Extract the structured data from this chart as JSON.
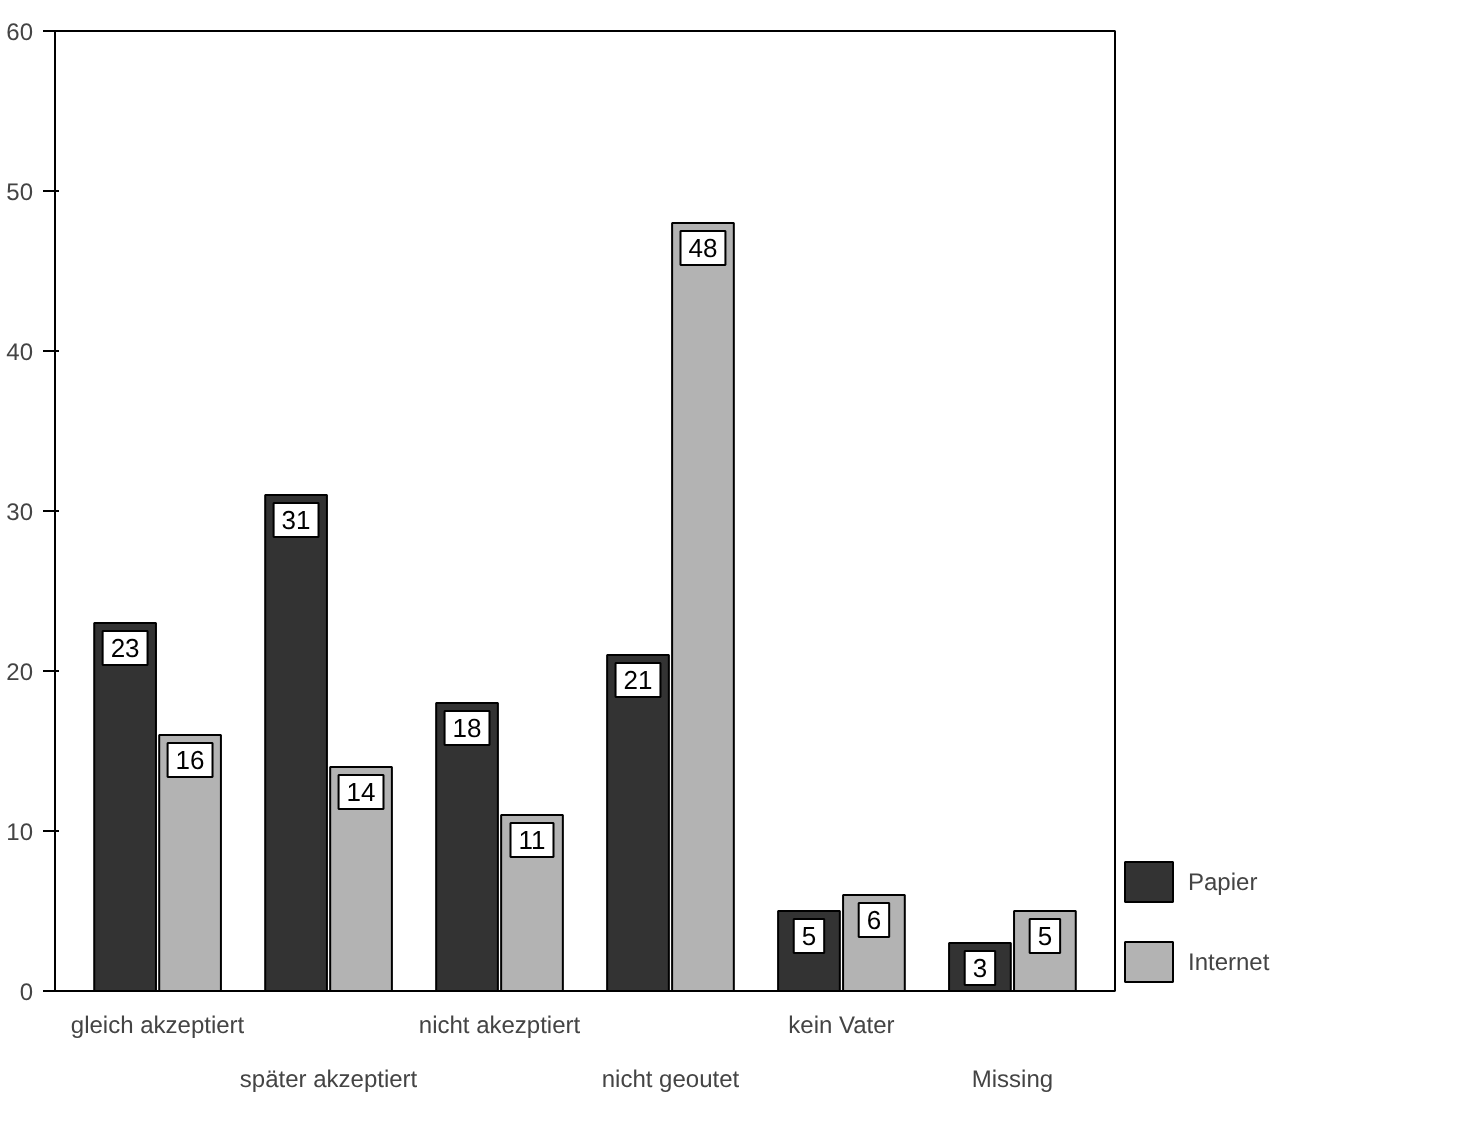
{
  "chart_data": {
    "type": "bar",
    "categories": [
      "gleich akzeptiert",
      "später akzeptiert",
      "nicht akezptiert",
      "nicht geoutet",
      "kein Vater",
      "Missing"
    ],
    "series": [
      {
        "name": "Papier",
        "color": "#333333",
        "values": [
          23,
          31,
          18,
          21,
          5,
          3
        ]
      },
      {
        "name": "Internet",
        "color": "#b3b3b3",
        "values": [
          16,
          14,
          11,
          48,
          6,
          5
        ]
      }
    ],
    "ylim": [
      0,
      60
    ],
    "yticks": [
      0,
      10,
      20,
      30,
      40,
      50,
      60
    ],
    "data_labels": true,
    "legend": "bottom right"
  }
}
